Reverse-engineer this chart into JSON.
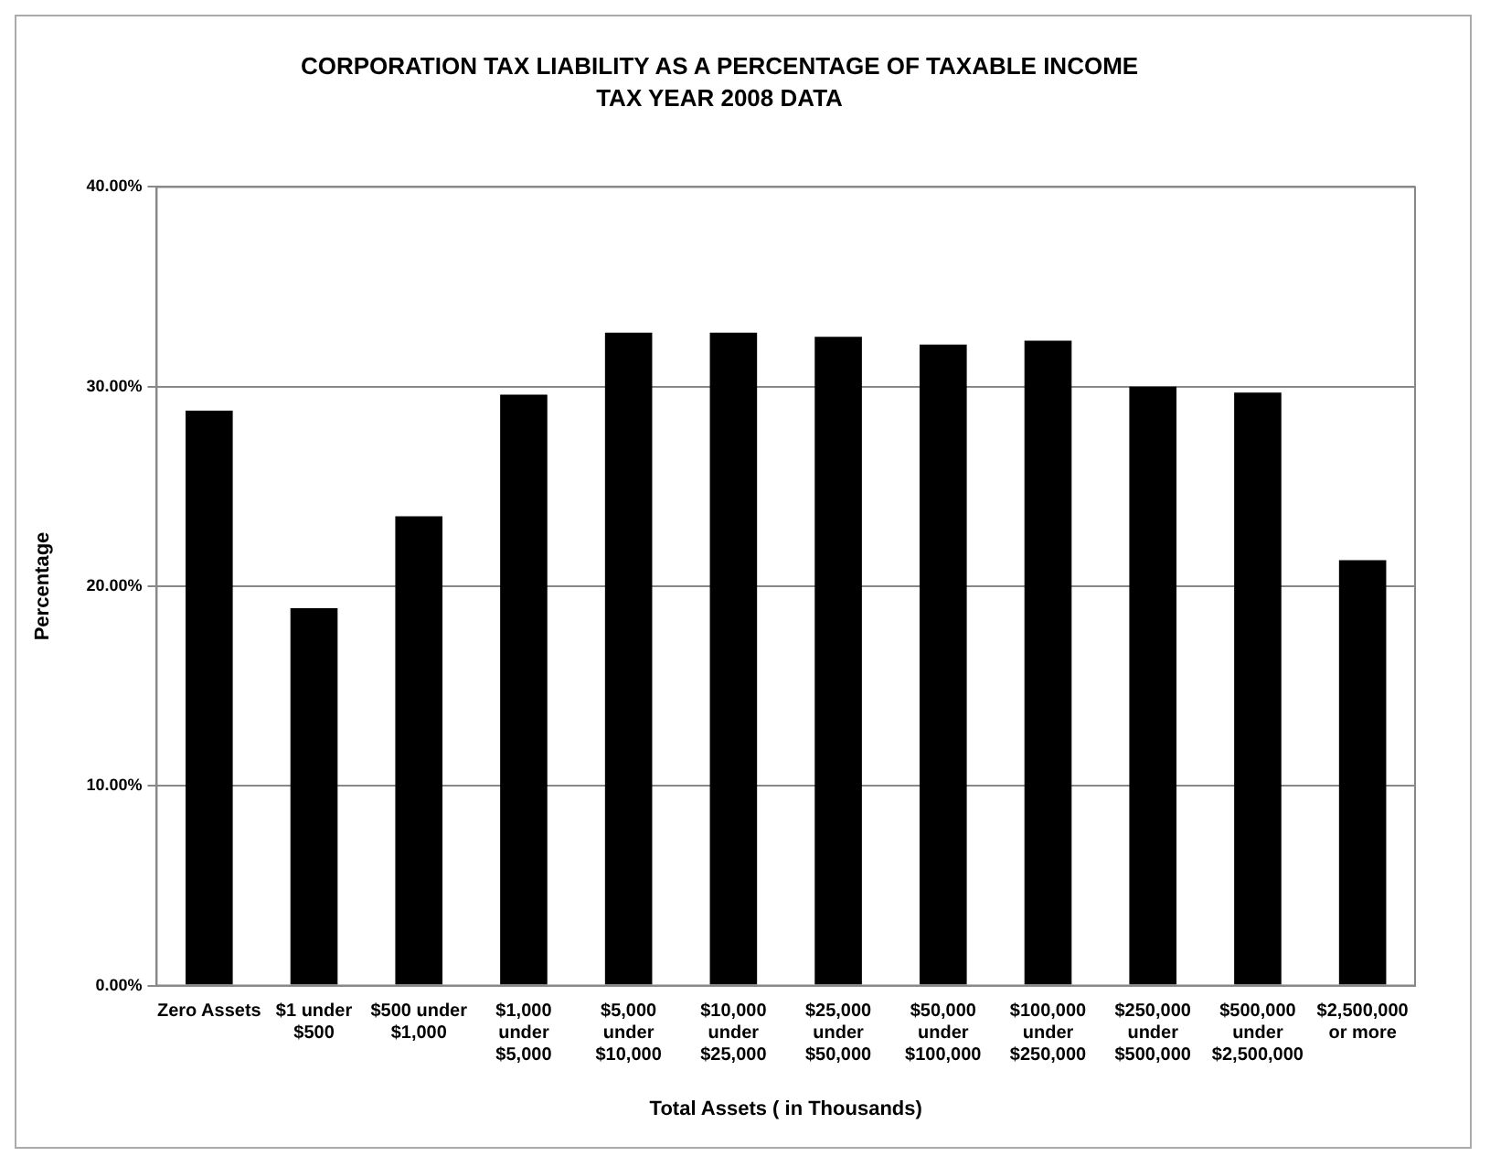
{
  "chart_data": {
    "type": "bar",
    "title": "CORPORATION TAX LIABILITY AS A PERCENTAGE OF TAXABLE INCOME",
    "subtitle": "TAX YEAR 2008 DATA",
    "xlabel": "Total Assets ( in Thousands)",
    "ylabel": "Percentage",
    "categories": [
      "Zero Assets",
      "$1 under $500",
      "$500 under $1,000",
      "$1,000 under $5,000",
      "$5,000 under $10,000",
      "$10,000 under $25,000",
      "$25,000 under $50,000",
      "$50,000 under $100,000",
      "$100,000 under $250,000",
      "$250,000 under $500,000",
      "$500,000 under $2,500,000",
      "$2,500,000 or more"
    ],
    "values": [
      28.8,
      18.9,
      23.5,
      29.6,
      32.7,
      32.7,
      32.5,
      32.1,
      32.3,
      30.0,
      29.7,
      21.3
    ],
    "color": "#000000",
    "ylim": [
      0,
      40
    ],
    "yticks": [
      {
        "value": 0,
        "label": "0.00%"
      },
      {
        "value": 10,
        "label": "10.00%"
      },
      {
        "value": 20,
        "label": "20.00%"
      },
      {
        "value": 30,
        "label": "30.00%"
      },
      {
        "value": 40,
        "label": "40.00%"
      }
    ],
    "grid": "y",
    "legend": false
  }
}
